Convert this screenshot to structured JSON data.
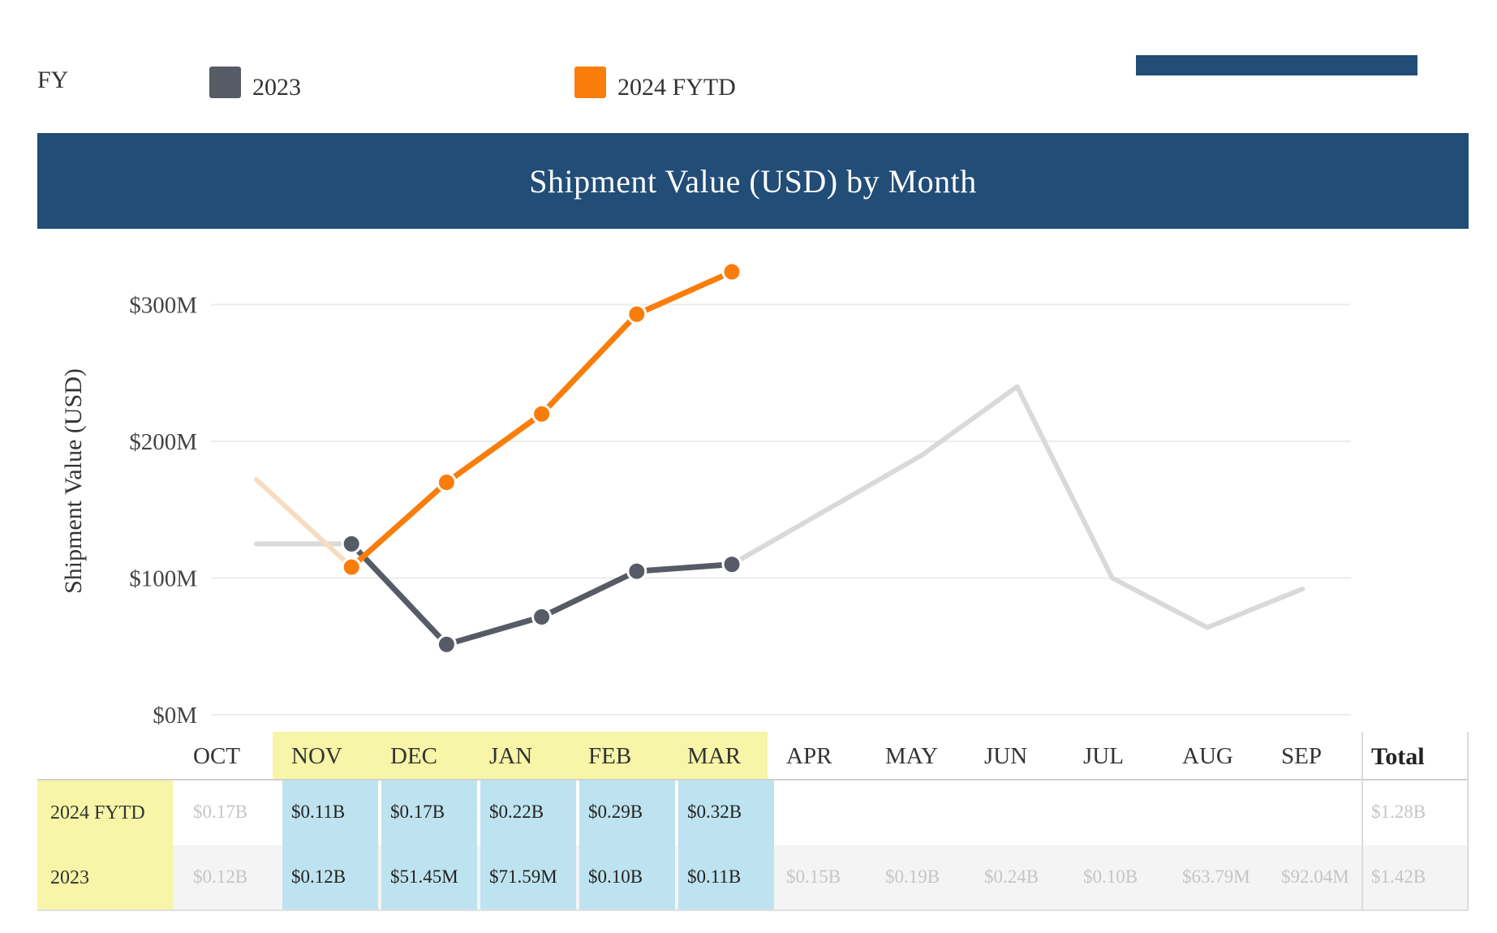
{
  "legend": {
    "title": "FY",
    "items": [
      {
        "label": "2023",
        "color": "#565b66"
      },
      {
        "label": "2024 FYTD",
        "color": "#f97d0a"
      }
    ]
  },
  "header": {
    "title": "Shipment Value (USD) by Month"
  },
  "colors": {
    "banner": "#214d77",
    "series_2023": "#565b66",
    "series_2024": "#f97d0a",
    "faded_line": "#d9d9d9",
    "faded_orange": "#f8dcc0",
    "highlight_yellow": "#f6f5a8",
    "highlight_blue": "#bee3f0"
  },
  "chart_data": {
    "type": "line",
    "ylabel": "Shipment Value (USD)",
    "ylim": [
      0,
      320
    ],
    "yticks": [
      0,
      100,
      200,
      300
    ],
    "ytick_labels": [
      "$0M",
      "$100M",
      "$200M",
      "$300M"
    ],
    "categories": [
      "OCT",
      "NOV",
      "DEC",
      "JAN",
      "FEB",
      "MAR",
      "APR",
      "MAY",
      "JUN",
      "JUL",
      "AUG",
      "SEP"
    ],
    "highlight_categories": [
      "NOV",
      "DEC",
      "JAN",
      "FEB",
      "MAR"
    ],
    "grid": true,
    "series": [
      {
        "name": "2023",
        "values": [
          125,
          125,
          51.45,
          71.59,
          105,
          110,
          150,
          190,
          240,
          100,
          63.79,
          92.04
        ]
      },
      {
        "name": "2024 FYTD",
        "values": [
          172,
          108,
          170,
          220,
          293,
          324,
          null,
          null,
          null,
          null,
          null,
          null
        ]
      }
    ]
  },
  "table": {
    "total_label": "Total",
    "rows": [
      {
        "label": "2024 FYTD",
        "cells": [
          "$0.17B",
          "$0.11B",
          "$0.17B",
          "$0.22B",
          "$0.29B",
          "$0.32B",
          "",
          "",
          "",
          "",
          "",
          ""
        ],
        "total": "$1.28B"
      },
      {
        "label": "2023",
        "cells": [
          "$0.12B",
          "$0.12B",
          "$51.45M",
          "$71.59M",
          "$0.10B",
          "$0.11B",
          "$0.15B",
          "$0.19B",
          "$0.24B",
          "$0.10B",
          "$63.79M",
          "$92.04M"
        ],
        "total": "$1.42B"
      }
    ]
  }
}
